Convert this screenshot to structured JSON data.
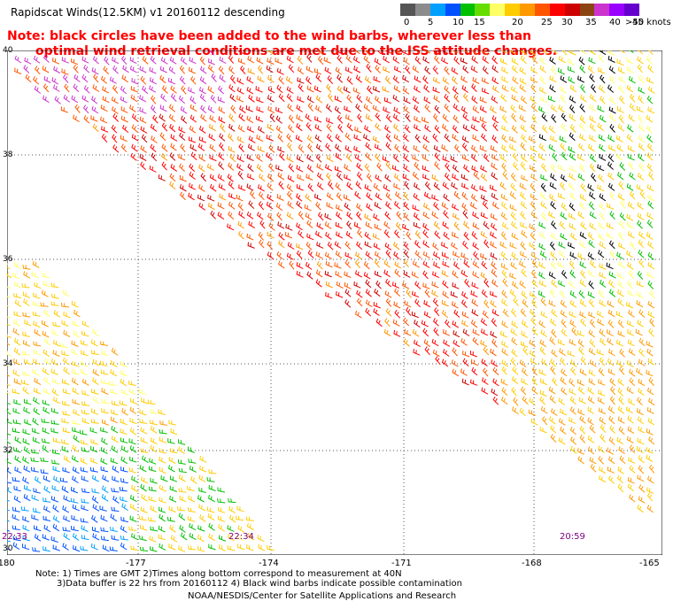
{
  "header": {
    "title": "Rapidscat Winds(12.5KM)   v1  20160112  descending",
    "note_line1": "Note: black circles have been added to the wind barbs, wherever less than",
    "note_line2": "optimal wind retrieval conditions are met due to the ISS attitude changes."
  },
  "colorbar": {
    "colors": [
      "#555555",
      "#8c8c8c",
      "#00a0ff",
      "#0050ff",
      "#00c000",
      "#66dd00",
      "#ffff66",
      "#ffcc00",
      "#ff9900",
      "#ff5500",
      "#ff0000",
      "#cc0000",
      "#8b4513",
      "#cc33cc",
      "#9900ff",
      "#6600cc"
    ],
    "labels": [
      "0",
      "5",
      "10",
      "15",
      "20",
      "25",
      "30",
      "35",
      "40",
      "45",
      ">50 knots"
    ]
  },
  "map": {
    "lat_labels": [
      "40",
      "38",
      "36",
      "34",
      "32",
      "30"
    ],
    "lon_labels": [
      "-180",
      "-177",
      "-174",
      "-171",
      "-168",
      "-165"
    ],
    "times": [
      "22:33",
      "22:34",
      "20:59"
    ]
  },
  "footer": {
    "note1": "Note: 1) Times are GMT 2)Times along bottom correspond to measurement at 40N",
    "note2": "3)Data buffer is 22 hrs from 20160112 4) Black wind barbs indicate possible contamination",
    "credit": "NOAA/NESDIS/Center for Satellite Applications and Research"
  }
}
